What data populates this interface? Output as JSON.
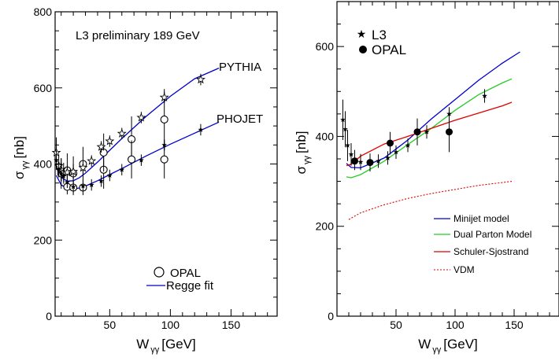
{
  "chart_data": [
    {
      "type": "scatter",
      "annotation": "L3 preliminary 189 GeV",
      "xlabel": "W",
      "xlabel_sub": "γγ",
      "xlabel_unit": "[GeV]",
      "ylabel": "σ",
      "ylabel_sub": "γγ",
      "ylabel_unit": "[nb]",
      "xlim": [
        5,
        188
      ],
      "ylim": [
        0,
        800
      ],
      "xticks": [
        50,
        100,
        150
      ],
      "yticks": [
        0,
        200,
        400,
        600,
        800
      ],
      "grid": false,
      "legend": {
        "position": "bottom-center",
        "entries": [
          "OPAL",
          "Regge fit"
        ]
      },
      "line_labels": [
        "PYTHIA",
        "PHOJET"
      ],
      "series": [
        {
          "name": "OPAL",
          "marker": "open-circle",
          "x": [
            10,
            15,
            20,
            28,
            45,
            68,
            95
          ],
          "y": [
            375,
            383,
            375,
            400,
            385,
            465,
            517
          ],
          "err": [
            40,
            45,
            45,
            45,
            50,
            60,
            80
          ]
        },
        {
          "marker": "open-circle",
          "x": [
            15,
            20,
            28,
            45,
            68,
            95
          ],
          "y": [
            340,
            338,
            338,
            430,
            412,
            412
          ],
          "err": [
            20,
            20,
            20,
            50,
            50,
            50
          ]
        },
        {
          "name": "PYTHIA",
          "marker": "open-star",
          "x": [
            6,
            8,
            10,
            12,
            15,
            20,
            28,
            35,
            43,
            50,
            60,
            76,
            95,
            125
          ],
          "y": [
            430,
            395,
            385,
            378,
            378,
            380,
            390,
            408,
            445,
            460,
            480,
            522,
            575,
            622
          ],
          "err": [
            40,
            30,
            30,
            25,
            20,
            20,
            20,
            15,
            15,
            15,
            15,
            15,
            15,
            15
          ]
        },
        {
          "name": "PHOJET",
          "marker": "filled-star",
          "x": [
            6,
            8,
            10,
            12,
            15,
            20,
            28,
            35,
            43,
            50,
            60,
            76,
            95,
            125
          ],
          "y": [
            410,
            385,
            375,
            368,
            352,
            340,
            342,
            345,
            355,
            370,
            385,
            410,
            450,
            490
          ],
          "err": [
            25,
            20,
            20,
            20,
            15,
            15,
            15,
            15,
            15,
            15,
            15,
            15,
            15,
            15
          ]
        },
        {
          "name": "Regge fit",
          "type": "line",
          "x": [
            6,
            10,
            15,
            20,
            25,
            30,
            40,
            50,
            60,
            80,
            100,
            120,
            140
          ],
          "y": [
            390,
            365,
            355,
            356,
            364,
            376,
            405,
            436,
            467,
            525,
            578,
            624,
            652
          ]
        },
        {
          "type": "line",
          "x": [
            6,
            10,
            15,
            20,
            25,
            30,
            40,
            50,
            60,
            80,
            100,
            120,
            140
          ],
          "y": [
            370,
            345,
            336,
            334,
            337,
            342,
            356,
            372,
            388,
            421,
            452,
            481,
            510
          ]
        }
      ]
    },
    {
      "type": "scatter",
      "xlabel": "W",
      "xlabel_sub": "γγ",
      "xlabel_unit": "[GeV]",
      "ylabel": "σ",
      "ylabel_sub": "γγ",
      "ylabel_unit": "[nb]",
      "xlim": [
        0,
        188
      ],
      "ylim": [
        0,
        700
      ],
      "xticks": [
        50,
        100,
        150
      ],
      "yticks": [
        0,
        200,
        400,
        600
      ],
      "grid": false,
      "legend": {
        "position": "top-left",
        "entries": [
          "L3",
          "OPAL"
        ]
      },
      "line_legend": {
        "position": "bottom-right",
        "entries": [
          "Minijet model",
          "Dual Parton Model",
          "Schuler-Sjostrand",
          "VDM"
        ]
      },
      "series": [
        {
          "name": "L3",
          "marker": "filled-star",
          "x": [
            5,
            7,
            9,
            12,
            15,
            20,
            28,
            35,
            43,
            50,
            60,
            76,
            95,
            125
          ],
          "y": [
            437,
            416,
            380,
            360,
            350,
            343,
            340,
            345,
            352,
            365,
            380,
            410,
            450,
            490
          ],
          "err": [
            45,
            40,
            35,
            25,
            20,
            18,
            15,
            15,
            15,
            15,
            15,
            15,
            15,
            15
          ]
        },
        {
          "name": "OPAL",
          "marker": "filled-circle",
          "x": [
            15,
            28,
            45,
            68,
            95
          ],
          "y": [
            345,
            342,
            385,
            410,
            410
          ],
          "err": [
            20,
            20,
            25,
            30,
            45
          ]
        },
        {
          "name": "Minijet model",
          "type": "line",
          "color": "#0000cc",
          "x": [
            8,
            12,
            20,
            40,
            60,
            80,
            100,
            120,
            140,
            155
          ],
          "y": [
            340,
            331,
            330,
            352,
            392,
            439,
            482,
            525,
            563,
            588
          ]
        },
        {
          "name": "Dual Parton Model",
          "type": "line",
          "color": "#22cc22",
          "x": [
            8,
            12,
            20,
            40,
            60,
            80,
            100,
            120,
            140,
            148
          ],
          "y": [
            310,
            308,
            315,
            345,
            382,
            418,
            458,
            493,
            519,
            528
          ]
        },
        {
          "name": "Schuler-Sjostrand",
          "type": "line",
          "color": "#dd0000",
          "x": [
            8,
            12,
            20,
            40,
            60,
            80,
            100,
            120,
            140,
            148
          ],
          "y": [
            335,
            338,
            356,
            383,
            400,
            418,
            436,
            452,
            468,
            476
          ]
        },
        {
          "name": "VDM",
          "type": "line",
          "dashed": true,
          "color": "#dd0000",
          "x": [
            10,
            20,
            40,
            60,
            80,
            100,
            120,
            148
          ],
          "y": [
            215,
            230,
            248,
            262,
            273,
            282,
            291,
            300
          ]
        }
      ]
    }
  ]
}
